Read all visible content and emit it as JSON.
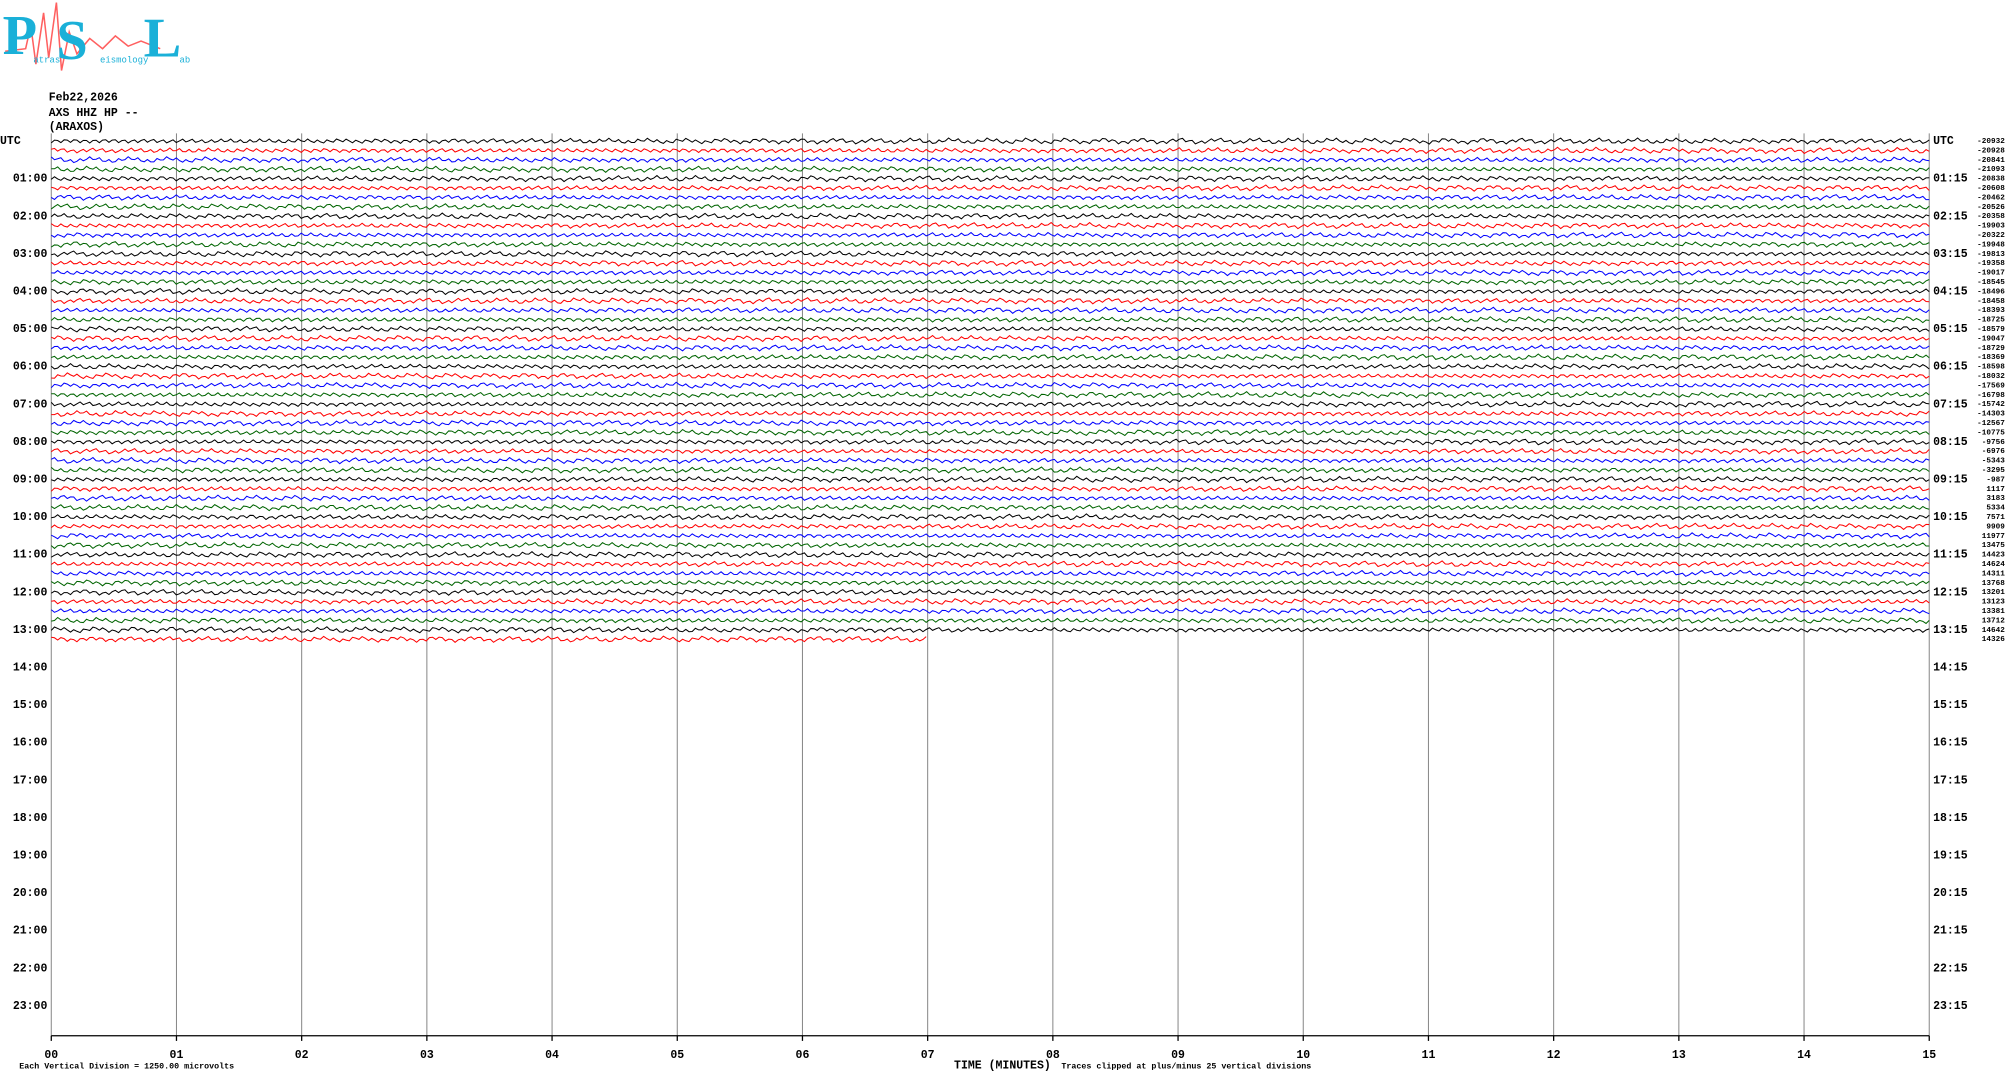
{
  "header": {
    "date": "Feb22,2026",
    "channel": "AXS HHZ HP --",
    "station": "(ARAXOS)"
  },
  "logo": {
    "letters": [
      "P",
      "S",
      "L"
    ],
    "words": [
      "atras",
      "eismology",
      "ab"
    ]
  },
  "chart_data": {
    "type": "helicorder",
    "left_labels": [
      "UTC",
      "01:00",
      "02:00",
      "03:00",
      "04:00",
      "05:00",
      "06:00",
      "07:00",
      "08:00",
      "09:00",
      "10:00",
      "11:00",
      "12:00",
      "13:00",
      "14:00",
      "15:00",
      "16:00",
      "17:00",
      "18:00",
      "19:00",
      "20:00",
      "21:00",
      "22:00",
      "23:00"
    ],
    "right_labels": [
      "UTC",
      "01:15",
      "02:15",
      "03:15",
      "04:15",
      "05:15",
      "06:15",
      "07:15",
      "08:15",
      "09:15",
      "10:15",
      "11:15",
      "12:15",
      "13:15",
      "14:15",
      "15:15",
      "16:15",
      "17:15",
      "18:15",
      "19:15",
      "20:15",
      "21:15",
      "22:15",
      "23:15"
    ],
    "xlim": [
      0,
      15
    ],
    "xticks": [
      {
        "value": 0,
        "label": "00"
      },
      {
        "value": 1,
        "label": "01"
      },
      {
        "value": 2,
        "label": "02"
      },
      {
        "value": 3,
        "label": "03"
      },
      {
        "value": 4,
        "label": "04"
      },
      {
        "value": 5,
        "label": "05"
      },
      {
        "value": 6,
        "label": "06"
      },
      {
        "value": 7,
        "label": "07"
      },
      {
        "value": 8,
        "label": "08"
      },
      {
        "value": 9,
        "label": "09"
      },
      10,
      11,
      12,
      13,
      14,
      15
    ],
    "xlabel": "TIME (MINUTES)",
    "note_left": "Each Vertical Division = 1250.00 microvolts",
    "note_right": "Traces clipped at plus/minus 25 vertical divisions",
    "offsets": [
      -20932,
      -20928,
      -20841,
      -21093,
      -20838,
      -20608,
      -20462,
      -20526,
      -20358,
      -19903,
      -20322,
      -19948,
      -19813,
      -19358,
      -19017,
      -18545,
      -18496,
      -18458,
      -18393,
      -18725,
      -18579,
      -19047,
      -18729,
      -18369,
      -18598,
      -18032,
      -17569,
      -16798,
      -15742,
      -14303,
      -12567,
      -10775,
      -9756,
      -6976,
      -5343,
      -3295,
      -987,
      1117,
      3183,
      5334,
      7571,
      9909,
      11977,
      13475,
      14423,
      14624,
      14311,
      13768,
      13201,
      13123,
      13381,
      13712,
      14642,
      14326
    ],
    "colors": [
      "#000000",
      "#ff0000",
      "#0000ff",
      "#006400"
    ],
    "last_trace_end": 7,
    "grid": true
  }
}
